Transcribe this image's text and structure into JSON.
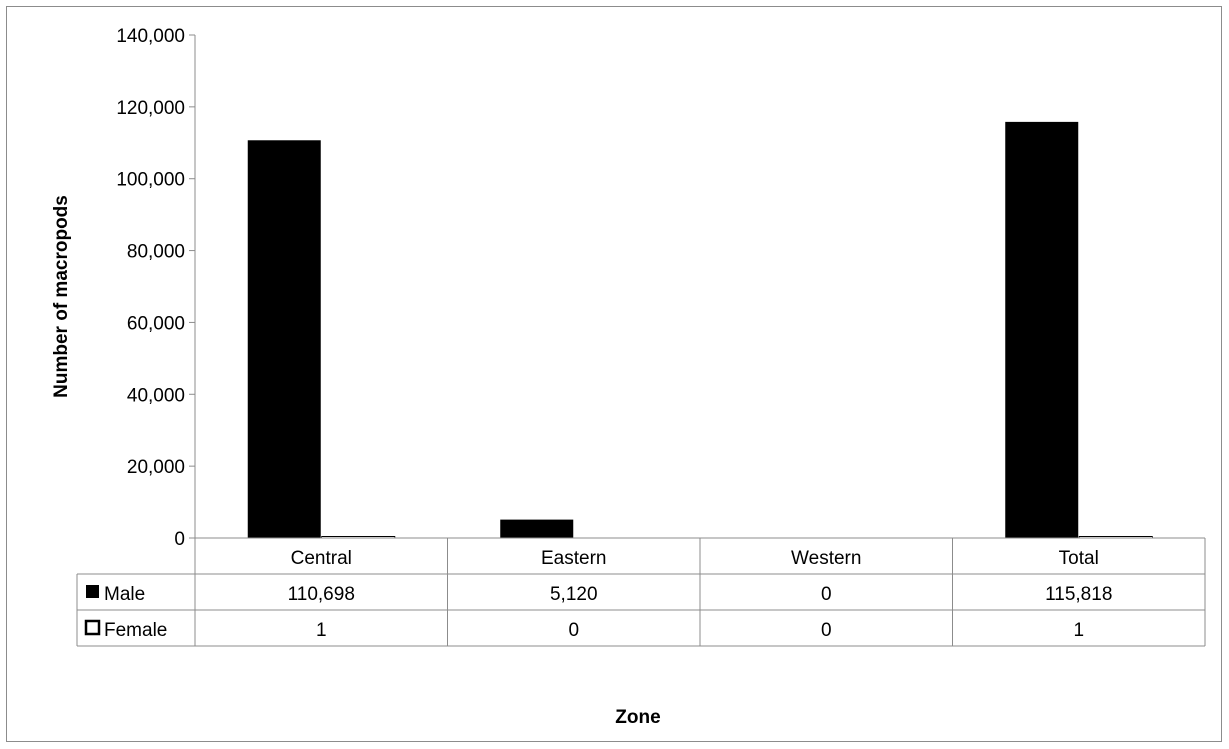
{
  "chart_data": {
    "type": "bar",
    "categories": [
      "Central",
      "Eastern",
      "Western",
      "Total"
    ],
    "series": [
      {
        "name": "Male",
        "values": [
          110698,
          5120,
          0,
          115818
        ],
        "color": "#000000",
        "legend_marker": "filled-square"
      },
      {
        "name": "Female",
        "values": [
          1,
          0,
          0,
          1
        ],
        "color": "#ffffff",
        "legend_marker": "hollow-square"
      }
    ],
    "table_cells": [
      [
        "110,698",
        "5,120",
        "0",
        "115,818"
      ],
      [
        "1",
        "0",
        "0",
        "1"
      ]
    ],
    "ylabel": "Number of macropods",
    "xlabel": "Zone",
    "ylim": [
      0,
      140000
    ],
    "yticks": [
      0,
      20000,
      40000,
      60000,
      80000,
      100000,
      120000,
      140000
    ],
    "ytick_labels": [
      "0",
      "20,000",
      "40,000",
      "60,000",
      "80,000",
      "100,000",
      "120,000",
      "140,000"
    ],
    "grid": false,
    "legend": "in data table"
  }
}
